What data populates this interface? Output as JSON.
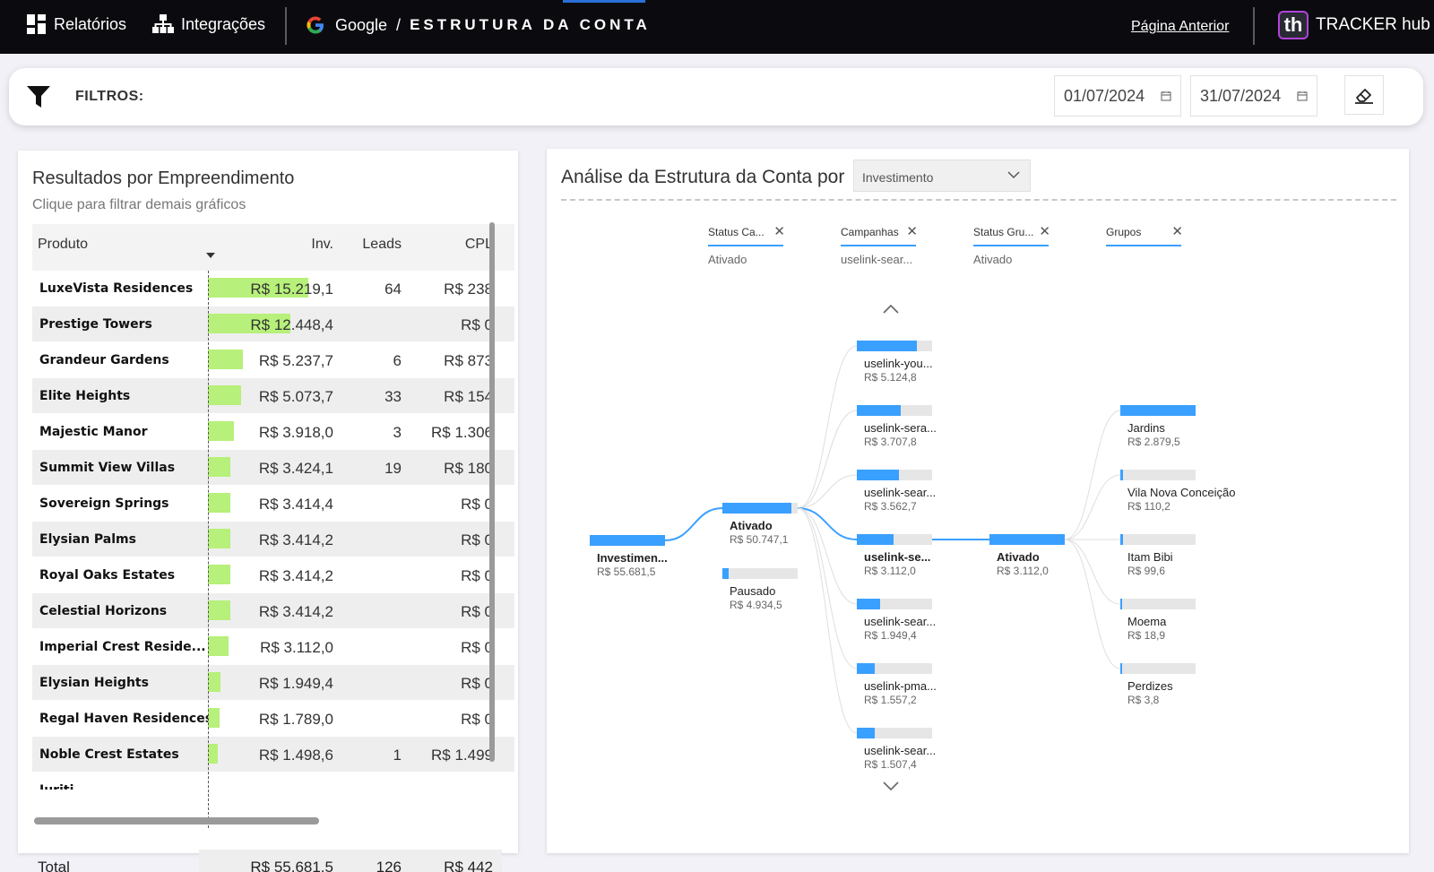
{
  "topbar": {
    "reports_label": "Relatórios",
    "integrations_label": "Integrações",
    "crumb_source": "Google",
    "crumb_sep": "/",
    "crumb_page": "ESTRUTURA DA CONTA",
    "prev_link": "Página Anterior",
    "brand_logo": "th",
    "brand_name": "TRACKER hub"
  },
  "filters": {
    "label": "FILTROS:",
    "date_start": "01/07/2024",
    "date_end": "31/07/2024"
  },
  "results": {
    "title": "Resultados por Empreendimento",
    "subtitle": "Clique para filtrar demais gráficos",
    "columns": {
      "product": "Produto",
      "inv": "Inv.",
      "leads": "Leads",
      "cpl": "CPL"
    },
    "max_investment": 15219.1,
    "rows": [
      {
        "name": "LuxeVista Residences",
        "inv": "R$ 15.219,1",
        "inv_value": 15219.1,
        "leads": "64",
        "cpl": "R$ 238"
      },
      {
        "name": "Prestige Towers",
        "inv": "R$ 12.448,4",
        "inv_value": 12448.4,
        "leads": "",
        "cpl": "R$ 0"
      },
      {
        "name": "Grandeur Gardens",
        "inv": "R$ 5.237,7",
        "inv_value": 5237.7,
        "leads": "6",
        "cpl": "R$ 873"
      },
      {
        "name": "Elite Heights",
        "inv": "R$ 5.073,7",
        "inv_value": 5073.7,
        "leads": "33",
        "cpl": "R$ 154"
      },
      {
        "name": "Majestic Manor",
        "inv": "R$ 3.918,0",
        "inv_value": 3918.0,
        "leads": "3",
        "cpl": "R$ 1.306"
      },
      {
        "name": "Summit View Villas",
        "inv": "R$ 3.424,1",
        "inv_value": 3424.1,
        "leads": "19",
        "cpl": "R$ 180"
      },
      {
        "name": "Sovereign Springs",
        "inv": "R$ 3.414,4",
        "inv_value": 3414.4,
        "leads": "",
        "cpl": "R$ 0"
      },
      {
        "name": "Elysian Palms",
        "inv": "R$ 3.414,2",
        "inv_value": 3414.2,
        "leads": "",
        "cpl": "R$ 0"
      },
      {
        "name": "Royal Oaks Estates",
        "inv": "R$ 3.414,2",
        "inv_value": 3414.2,
        "leads": "",
        "cpl": "R$ 0"
      },
      {
        "name": "Celestial Horizons",
        "inv": "R$ 3.414,2",
        "inv_value": 3414.2,
        "leads": "",
        "cpl": "R$ 0"
      },
      {
        "name": "Imperial Crest Reside...",
        "inv": "R$ 3.112,0",
        "inv_value": 3112.0,
        "leads": "",
        "cpl": "R$ 0"
      },
      {
        "name": "Elysian Heights",
        "inv": "R$ 1.949,4",
        "inv_value": 1949.4,
        "leads": "",
        "cpl": "R$ 0"
      },
      {
        "name": "Regal Haven Residences",
        "inv": "R$ 1.789,0",
        "inv_value": 1789.0,
        "leads": "",
        "cpl": "R$ 0"
      },
      {
        "name": "Noble Crest Estates",
        "inv": "R$ 1.498,6",
        "inv_value": 1498.6,
        "leads": "1",
        "cpl": "R$ 1.499"
      },
      {
        "name": "Iuriti",
        "inv": "",
        "inv_value": 0,
        "leads": "",
        "cpl": ""
      }
    ],
    "total": {
      "label": "Total",
      "inv": "R$ 55.681,5",
      "leads": "126",
      "cpl": "R$ 442"
    }
  },
  "analysis": {
    "title": "Análise da Estrutura da Conta por",
    "metric_selected": "Investimento",
    "levels": [
      {
        "name": "Status Ca...",
        "value": "Ativado"
      },
      {
        "name": "Campanhas",
        "value": "uselink-sear..."
      },
      {
        "name": "Status Gru...",
        "value": "Ativado"
      },
      {
        "name": "Grupos",
        "value": ""
      }
    ],
    "root": {
      "label": "Investimen...",
      "value": "R$ 55.681,5",
      "amount": 55681.5
    },
    "status": [
      {
        "label": "Ativado",
        "value": "R$ 50.747,1",
        "amount": 50747.1
      },
      {
        "label": "Pausado",
        "value": "R$ 4.934,5",
        "amount": 4934.5
      }
    ],
    "campaigns": [
      {
        "label": "uselink-you...",
        "value": "R$ 5.124,8",
        "amount": 5124.8
      },
      {
        "label": "uselink-sera...",
        "value": "R$ 3.707,8",
        "amount": 3707.8
      },
      {
        "label": "uselink-sear...",
        "value": "R$ 3.562,7",
        "amount": 3562.7
      },
      {
        "label": "uselink-se...",
        "value": "R$ 3.112,0",
        "amount": 3112.0
      },
      {
        "label": "uselink-sear...",
        "value": "R$ 1.949,4",
        "amount": 1949.4
      },
      {
        "label": "uselink-pma...",
        "value": "R$ 1.557,2",
        "amount": 1557.2
      },
      {
        "label": "uselink-sear...",
        "value": "R$ 1.507,4",
        "amount": 1507.4
      }
    ],
    "group_status": {
      "label": "Ativado",
      "value": "R$ 3.112,0",
      "amount": 3112.0
    },
    "groups": [
      {
        "label": "Jardins",
        "value": "R$ 2.879,5",
        "amount": 2879.5
      },
      {
        "label": "Vila Nova Conceição",
        "value": "R$ 110,2",
        "amount": 110.2
      },
      {
        "label": "Itam Bibi",
        "value": "R$ 99,6",
        "amount": 99.6
      },
      {
        "label": "Moema",
        "value": "R$ 18,9",
        "amount": 18.9
      },
      {
        "label": "Perdizes",
        "value": "R$ 3,8",
        "amount": 3.8
      }
    ]
  },
  "colors": {
    "accent": "#3aa0ff",
    "data_bar": "#b7f07a",
    "topbar": "#0b0b0f"
  },
  "icons": [
    "grid-icon",
    "sitemap-icon",
    "google-icon",
    "filter-icon",
    "calendar-icon",
    "eraser-icon",
    "close-icon",
    "chevron-down-icon",
    "chevron-up-icon"
  ]
}
